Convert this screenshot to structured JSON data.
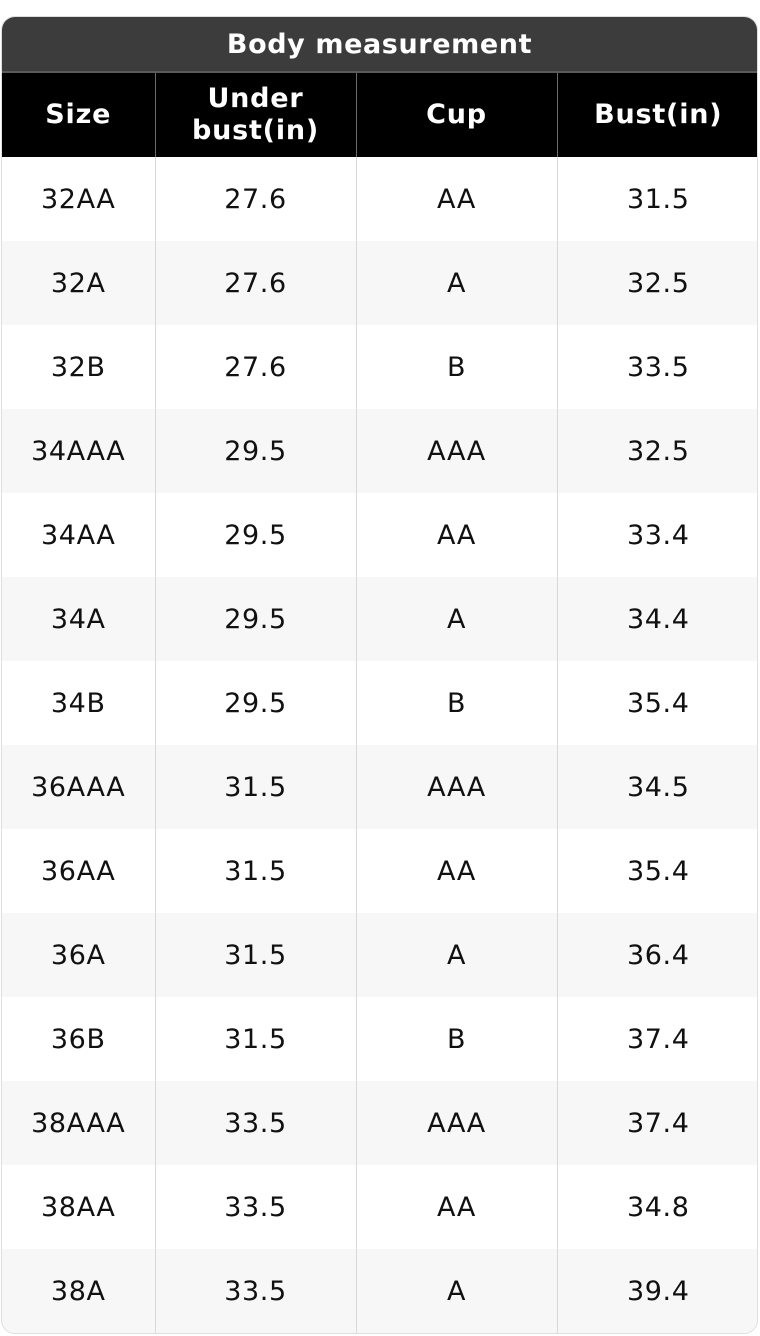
{
  "table": {
    "title": "Body measurement",
    "headers": {
      "size": "Size",
      "under_bust_line1": "Under",
      "under_bust_line2": "bust(in)",
      "cup": "Cup",
      "bust": "Bust(in)"
    },
    "rows": [
      {
        "size": "32AA",
        "under_bust": "27.6",
        "cup": "AA",
        "bust": "31.5"
      },
      {
        "size": "32A",
        "under_bust": "27.6",
        "cup": "A",
        "bust": "32.5"
      },
      {
        "size": "32B",
        "under_bust": "27.6",
        "cup": "B",
        "bust": "33.5"
      },
      {
        "size": "34AAA",
        "under_bust": "29.5",
        "cup": "AAA",
        "bust": "32.5"
      },
      {
        "size": "34AA",
        "under_bust": "29.5",
        "cup": "AA",
        "bust": "33.4"
      },
      {
        "size": "34A",
        "under_bust": "29.5",
        "cup": "A",
        "bust": "34.4"
      },
      {
        "size": "34B",
        "under_bust": "29.5",
        "cup": "B",
        "bust": "35.4"
      },
      {
        "size": "36AAA",
        "under_bust": "31.5",
        "cup": "AAA",
        "bust": "34.5"
      },
      {
        "size": "36AA",
        "under_bust": "31.5",
        "cup": "AA",
        "bust": "35.4"
      },
      {
        "size": "36A",
        "under_bust": "31.5",
        "cup": "A",
        "bust": "36.4"
      },
      {
        "size": "36B",
        "under_bust": "31.5",
        "cup": "B",
        "bust": "37.4"
      },
      {
        "size": "38AAA",
        "under_bust": "33.5",
        "cup": "AAA",
        "bust": "37.4"
      },
      {
        "size": "38AA",
        "under_bust": "33.5",
        "cup": "AA",
        "bust": "34.8"
      },
      {
        "size": "38A",
        "under_bust": "33.5",
        "cup": "A",
        "bust": "39.4"
      }
    ]
  },
  "colors": {
    "title_bar": "#3c3c3c",
    "header_row": "#000000",
    "zebra_row": "#f7f7f7"
  }
}
